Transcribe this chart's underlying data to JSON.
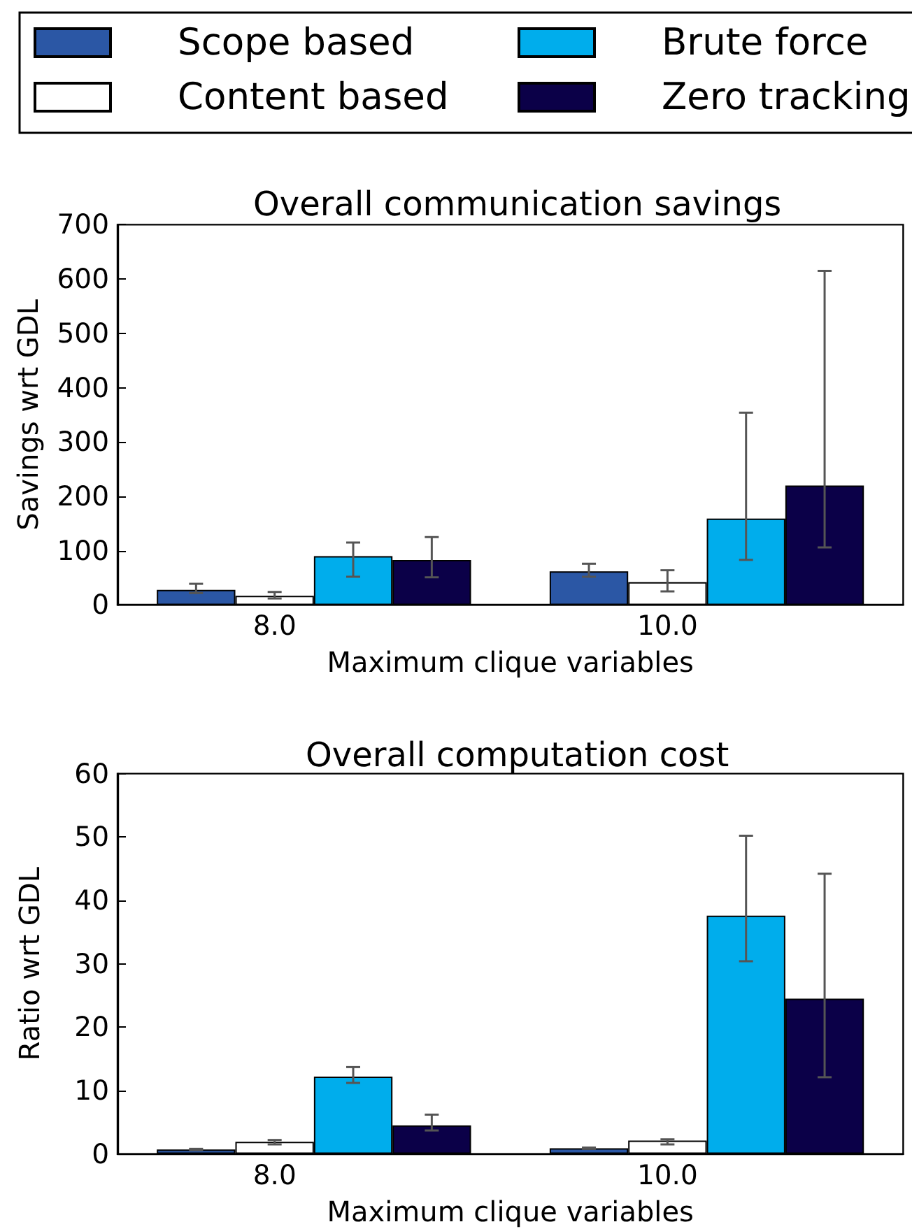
{
  "chart_data": [
    {
      "type": "bar",
      "title": "Overall communication savings",
      "xlabel": "Maximum clique variables",
      "ylabel": "Savings wrt GDL",
      "categories": [
        "8.0",
        "10.0"
      ],
      "series": [
        {
          "name": "Scope based",
          "color": "#2b57a5",
          "values": [
            28,
            62
          ],
          "errors": [
            [
              22,
              39
            ],
            [
              52,
              76
            ]
          ]
        },
        {
          "name": "Content based",
          "color": "#ffffff",
          "values": [
            17,
            42
          ],
          "errors": [
            [
              12,
              24
            ],
            [
              25,
              64
            ]
          ]
        },
        {
          "name": "Brute force",
          "color": "#00adec",
          "values": [
            90,
            159
          ],
          "errors": [
            [
              52,
              115
            ],
            [
              83,
              354
            ]
          ]
        },
        {
          "name": "Zero tracking",
          "color": "#0b0048",
          "values": [
            83,
            220
          ],
          "errors": [
            [
              51,
              125
            ],
            [
              106,
              615
            ]
          ]
        }
      ],
      "ylim": [
        0,
        700
      ],
      "yticks": [
        0,
        100,
        200,
        300,
        400,
        500,
        600,
        700
      ],
      "legend": "top"
    },
    {
      "type": "bar",
      "title": "Overall computation cost",
      "xlabel": "Maximum clique variables",
      "ylabel": "Ratio wrt GDL",
      "categories": [
        "8.0",
        "10.0"
      ],
      "series": [
        {
          "color": "#2b57a5",
          "values": [
            0.7,
            0.9
          ],
          "errors": [
            [
              0.6,
              0.8
            ],
            [
              0.8,
              1.0
            ]
          ]
        },
        {
          "color": "#ffffff",
          "values": [
            1.9,
            2.1
          ],
          "errors": [
            [
              1.5,
              2.2
            ],
            [
              1.5,
              2.3
            ]
          ]
        },
        {
          "color": "#00adec",
          "values": [
            12.2,
            37.6
          ],
          "errors": [
            [
              11.2,
              13.7
            ],
            [
              30.4,
              50.2
            ]
          ]
        },
        {
          "color": "#0b0048",
          "values": [
            4.5,
            24.5
          ],
          "errors": [
            [
              3.7,
              6.2
            ],
            [
              12.1,
              44.2
            ]
          ]
        }
      ],
      "ylim": [
        0,
        60
      ],
      "yticks": [
        0,
        10,
        20,
        30,
        40,
        50,
        60
      ]
    }
  ]
}
